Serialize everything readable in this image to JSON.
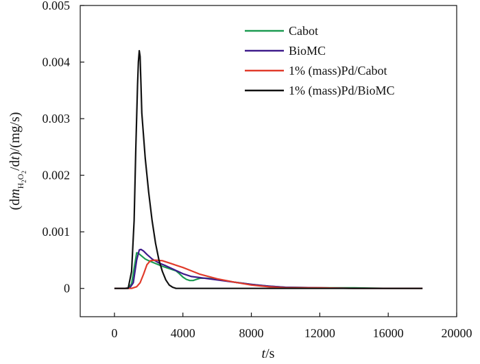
{
  "chart_data": {
    "type": "line",
    "title": "",
    "xlabel": {
      "italic": "t",
      "unit": "/s"
    },
    "ylabel": {
      "open": "(d",
      "var": "m",
      "sub1": "H",
      "sub2": "2",
      "sub3": "O",
      "sub4": "2",
      "mid": "/d",
      "var2": "t",
      "close": ")/(mg/s)"
    },
    "xlim": [
      -2000,
      20000
    ],
    "ylim": [
      -0.0005,
      0.005
    ],
    "xticks": [
      0,
      4000,
      8000,
      12000,
      16000,
      20000
    ],
    "xtick_labels": [
      "0",
      "4000",
      "8000",
      "12000",
      "16000",
      "20000"
    ],
    "yticks": [
      0,
      0.001,
      0.002,
      0.003,
      0.004,
      0.005
    ],
    "ytick_labels": [
      "0",
      "0.001",
      "0.002",
      "0.003",
      "0.004",
      "0.005"
    ],
    "legend_position": "top-right",
    "series": [
      {
        "name": "Cabot",
        "color": "#1a9a50",
        "x": [
          0,
          600,
          800,
          1000,
          1200,
          1300,
          1400,
          1600,
          1800,
          2000,
          2400,
          2800,
          3200,
          3600,
          3800,
          4000,
          4200,
          4400,
          4600,
          4800,
          5000,
          5400,
          6000,
          7000,
          8000,
          9000,
          10000,
          12000,
          14000,
          16000,
          18000
        ],
        "y": [
          0,
          0,
          1e-05,
          8e-05,
          0.00045,
          0.00063,
          0.00062,
          0.00057,
          0.00052,
          0.00049,
          0.00044,
          0.00039,
          0.00035,
          0.00031,
          0.00026,
          0.0002,
          0.00016,
          0.00014,
          0.00014,
          0.00016,
          0.00018,
          0.00018,
          0.00016,
          0.00011,
          7e-05,
          4e-05,
          2e-05,
          1e-05,
          1e-05,
          0,
          0
        ]
      },
      {
        "name": "BioMC",
        "color": "#3d1a8a",
        "x": [
          0,
          600,
          900,
          1100,
          1300,
          1450,
          1550,
          1700,
          1900,
          2200,
          2600,
          3000,
          3500,
          4000,
          4500,
          5000,
          6000,
          7000,
          8000,
          9000,
          10000,
          12000,
          14000,
          16000,
          18000
        ],
        "y": [
          0,
          0,
          1e-05,
          0.0001,
          0.0005,
          0.00068,
          0.00069,
          0.00066,
          0.0006,
          0.00052,
          0.00045,
          0.0004,
          0.00033,
          0.00026,
          0.00021,
          0.00019,
          0.00015,
          0.00011,
          7e-05,
          4e-05,
          2e-05,
          1e-05,
          0,
          0,
          0
        ]
      },
      {
        "name": "1% (mass)Pd/Cabot",
        "color": "#e03a2a",
        "x": [
          0,
          1000,
          1300,
          1500,
          1700,
          1900,
          2100,
          2400,
          2800,
          3200,
          3600,
          4000,
          4500,
          5000,
          6000,
          7000,
          8000,
          9000,
          10000,
          12000,
          14000,
          16000,
          18000
        ],
        "y": [
          0,
          0,
          3e-05,
          0.0001,
          0.00025,
          0.00042,
          0.00049,
          0.0005,
          0.00049,
          0.00045,
          0.00041,
          0.00037,
          0.00031,
          0.00025,
          0.00017,
          0.00011,
          6e-05,
          3e-05,
          1e-05,
          1e-05,
          0,
          0,
          0
        ]
      },
      {
        "name": "1% (mass)Pd/BioMC",
        "color": "#111111",
        "x": [
          0,
          800,
          1000,
          1150,
          1250,
          1350,
          1400,
          1450,
          1500,
          1550,
          1600,
          1800,
          2000,
          2200,
          2400,
          2600,
          2800,
          3000,
          3200,
          3400,
          3600,
          4000,
          6000,
          10000,
          14000,
          18000
        ],
        "y": [
          0,
          0,
          0.0003,
          0.0012,
          0.0025,
          0.0036,
          0.004,
          0.0042,
          0.0041,
          0.0036,
          0.0031,
          0.0023,
          0.0017,
          0.0012,
          0.0008,
          0.0005,
          0.0003,
          0.00015,
          6e-05,
          2e-05,
          0,
          0,
          0,
          0,
          0,
          0
        ]
      }
    ]
  }
}
